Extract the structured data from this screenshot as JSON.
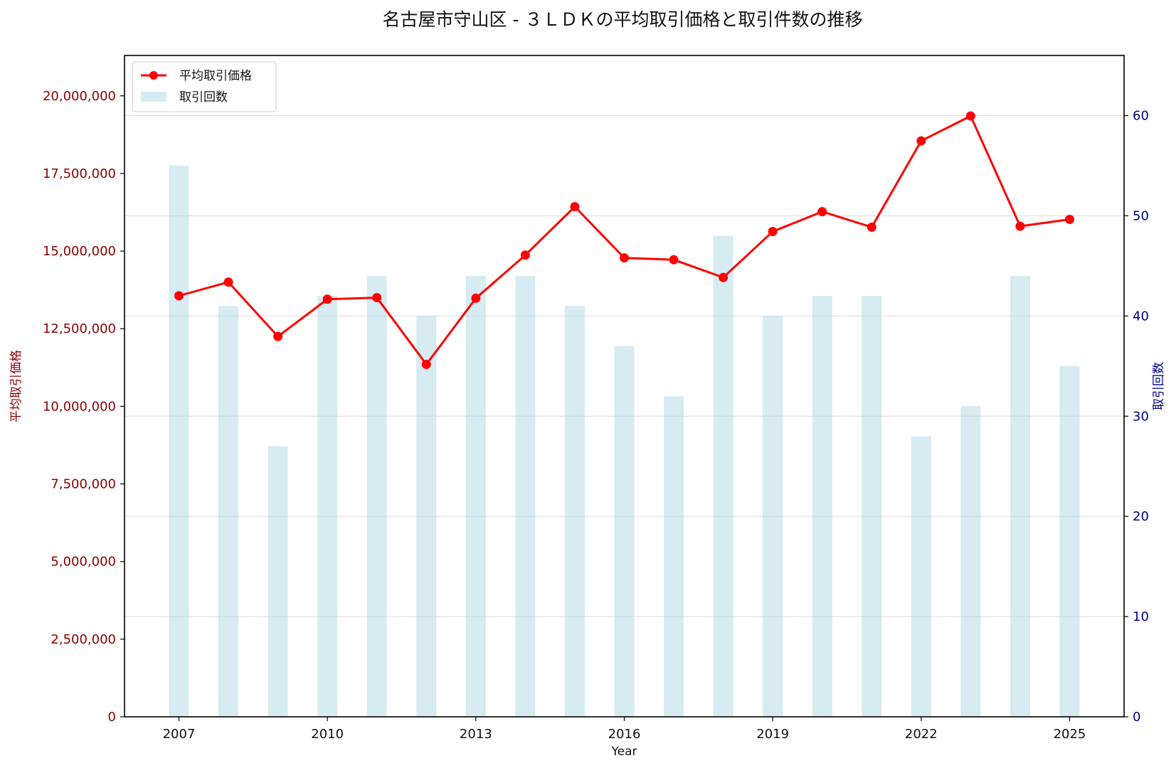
{
  "chart_data": {
    "type": "bar+line",
    "title": "名古屋市守山区 - ３ＬＤＫの平均取引価格と取引件数の推移",
    "xlabel": "Year",
    "ylabel_left": "平均取引価格",
    "ylabel_right": "取引回数",
    "x": [
      2007,
      2008,
      2009,
      2010,
      2011,
      2012,
      2013,
      2014,
      2015,
      2016,
      2017,
      2018,
      2019,
      2020,
      2021,
      2022,
      2023,
      2024,
      2025
    ],
    "xticks": [
      "2007",
      "2010",
      "2013",
      "2016",
      "2019",
      "2022",
      "2025"
    ],
    "xlim": [
      2005.9,
      2026.1
    ],
    "series": [
      {
        "name": "平均取引価格",
        "type": "line",
        "axis": "left",
        "color": "#ff0000",
        "values": [
          13560000,
          14000000,
          12250000,
          13450000,
          13500000,
          11350000,
          13480000,
          14870000,
          16430000,
          14780000,
          14720000,
          14150000,
          15630000,
          16270000,
          15770000,
          18550000,
          19350000,
          15800000,
          16020000
        ]
      },
      {
        "name": "取引回数",
        "type": "bar",
        "axis": "right",
        "color": "#add8e6",
        "values": [
          55,
          41,
          27,
          42,
          44,
          40,
          44,
          44,
          41,
          37,
          32,
          48,
          40,
          42,
          42,
          28,
          31,
          44,
          35
        ]
      }
    ],
    "ylim_left": [
      0,
      21300000
    ],
    "ylim_right": [
      0,
      66
    ],
    "yticks_left": [
      "0",
      "2,500,000",
      "5,000,000",
      "7,500,000",
      "10,000,000",
      "12,500,000",
      "15,000,000",
      "17,500,000",
      "20,000,000"
    ],
    "yticks_right": [
      "0",
      "10",
      "20",
      "30",
      "40",
      "50",
      "60"
    ],
    "left_axis_color": "#8b0000",
    "right_axis_color": "#00008b",
    "grid": true,
    "legend_position": "upper-left"
  }
}
